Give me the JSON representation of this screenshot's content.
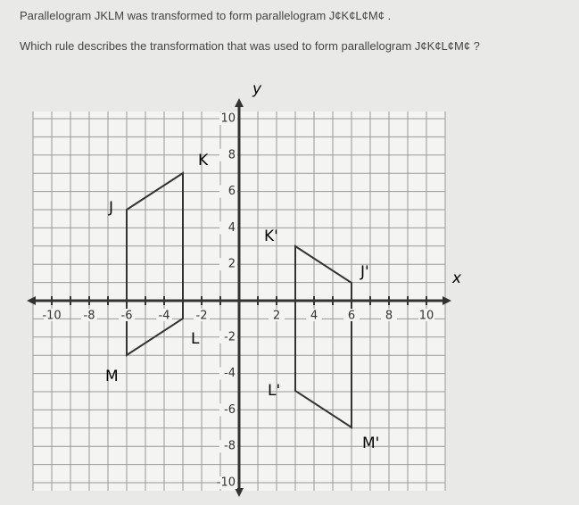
{
  "question": {
    "line1": "Parallelogram JKLM was transformed to form parallelogram J¢K¢L¢M¢ .",
    "line2": "Which rule describes the transformation that was used to form parallelogram J¢K¢L¢M¢ ?"
  },
  "graph": {
    "x_label": "x",
    "y_label": "y",
    "xticks": [
      -10,
      -8,
      -6,
      -4,
      -2,
      2,
      4,
      6,
      8,
      10
    ],
    "yticks": [
      10,
      8,
      6,
      4,
      2,
      -2,
      -4,
      -6,
      -8,
      -10
    ],
    "vertices": [
      "J",
      "K",
      "L",
      "M",
      "K'",
      "J'",
      "L'",
      "M'"
    ]
  }
}
